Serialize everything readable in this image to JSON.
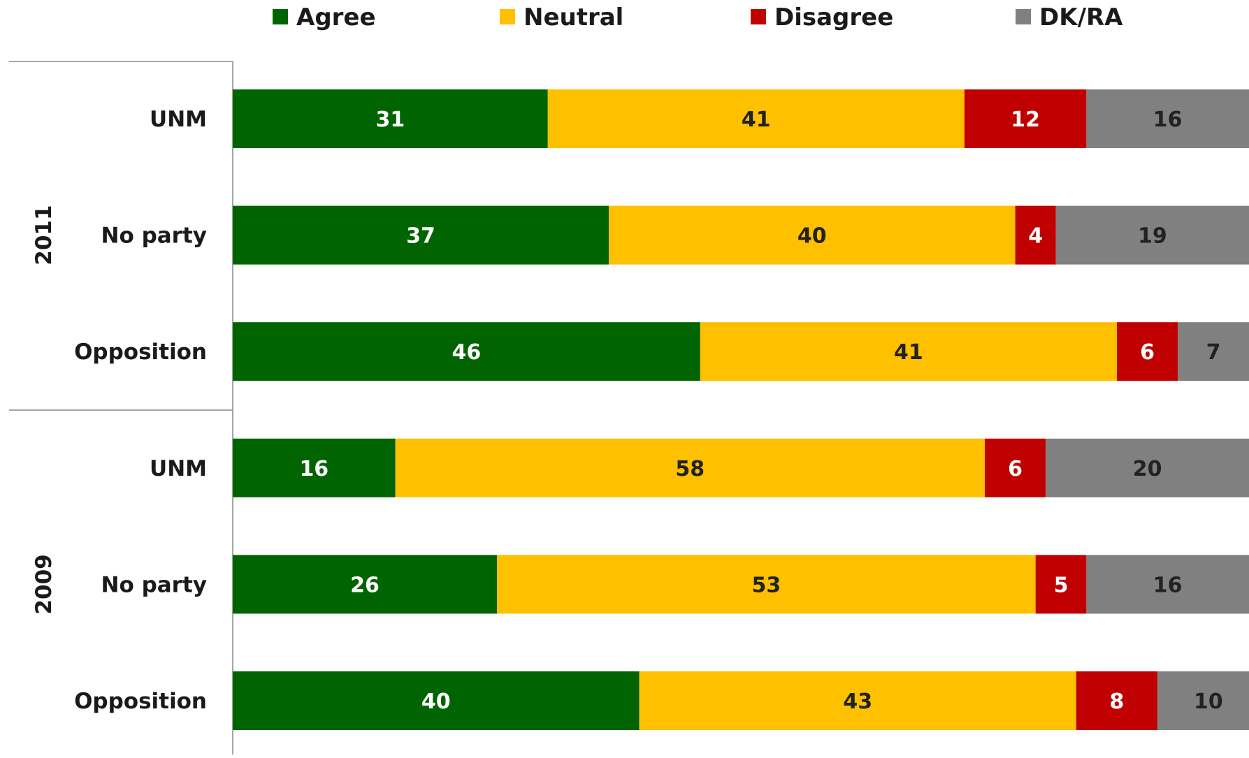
{
  "chart_data": {
    "type": "bar",
    "orientation": "horizontal",
    "stacked": true,
    "title": "",
    "xlabel": "",
    "ylabel": "",
    "legend_position": "top",
    "grid": false,
    "xlim": [
      0,
      100
    ],
    "groups": [
      {
        "label": "2011",
        "categories": [
          "UNM",
          "No party",
          "Opposition"
        ]
      },
      {
        "label": "2009",
        "categories": [
          "UNM",
          "No party",
          "Opposition"
        ]
      }
    ],
    "series": [
      {
        "name": "Agree",
        "color": "#006400",
        "label_color": "#ffffff",
        "values": [
          31,
          37,
          46,
          16,
          26,
          40
        ]
      },
      {
        "name": "Neutral",
        "color": "#ffc000",
        "label_color": "#222222",
        "values": [
          41,
          40,
          41,
          58,
          53,
          43
        ]
      },
      {
        "name": "Disagree",
        "color": "#c00000",
        "label_color": "#ffffff",
        "values": [
          12,
          4,
          6,
          6,
          5,
          8
        ]
      },
      {
        "name": "DK/RA",
        "color": "#808080",
        "label_color": "#222222",
        "values": [
          16,
          19,
          7,
          20,
          16,
          10
        ]
      }
    ]
  }
}
